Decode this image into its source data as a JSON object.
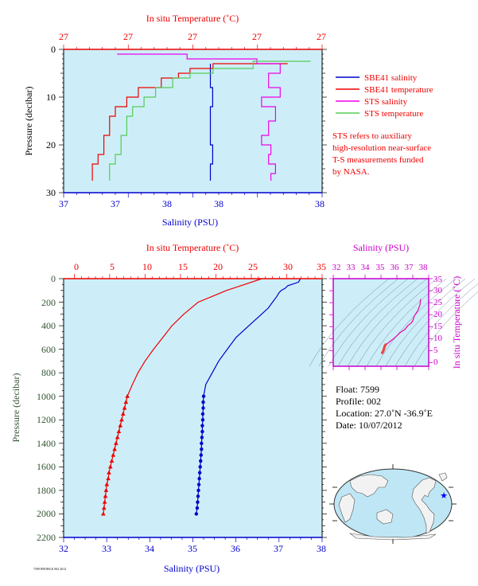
{
  "top_panel": {
    "top_axis_title": "In situ Temperature (˚C)",
    "top_tick_labels": [
      "27",
      "27",
      "27",
      "27",
      "27"
    ],
    "bottom_axis_title": "Salinity (PSU)",
    "bottom_tick_labels": [
      "37",
      "37",
      "38",
      "38",
      "38"
    ],
    "y_axis_title": "Pressure (decibar)",
    "y_tick_labels": [
      "0",
      "10",
      "20",
      "30"
    ],
    "legend": [
      {
        "label": "SBE41 salinity",
        "color": "#0000cc"
      },
      {
        "label": "SBE41 temperature",
        "color": "#ee0000"
      },
      {
        "label": "STS salinity",
        "color": "#ee00ee"
      },
      {
        "label": "STS temperature",
        "color": "#55cc55"
      }
    ],
    "note_lines": [
      "STS refers to auxiliary",
      "high-resolution near-surface",
      "T-S measurements funded",
      "by NASA."
    ]
  },
  "main_panel": {
    "top_axis_title": "In situ Temperature (˚C)",
    "top_tick_labels": [
      "0",
      "5",
      "10",
      "15",
      "20",
      "25",
      "30",
      "35"
    ],
    "bottom_axis_title": "Salinity (PSU)",
    "bottom_tick_labels": [
      "32",
      "33",
      "34",
      "35",
      "36",
      "37",
      "38"
    ],
    "y_axis_title": "Pressure (decibar)",
    "y_tick_labels": [
      "0",
      "200",
      "400",
      "600",
      "800",
      "1000",
      "1200",
      "1400",
      "1600",
      "1800",
      "2000",
      "2200"
    ]
  },
  "ts_panel": {
    "top_axis_title": "Salinity (PSU)",
    "top_tick_labels": [
      "32",
      "33",
      "34",
      "35",
      "36",
      "37",
      "38"
    ],
    "right_axis_title": "In situ Temperature (˚C)",
    "right_tick_labels": [
      "0",
      "5",
      "10",
      "15",
      "20",
      "25",
      "30",
      "35"
    ]
  },
  "info": {
    "float": "Float:  7599",
    "profile": "Profile:  002",
    "location": "Location:  27.0˚N  -36.9˚E",
    "date": "Date:  10/07/2012"
  },
  "footer_note": "7599 PROFILE 002 2012",
  "colors": {
    "panel_bg": "#cdeef8",
    "salinity": "#0000cc",
    "temperature": "#ee0000",
    "sts_salinity": "#ee00ee",
    "sts_temperature": "#55cc55",
    "axis_top": "#ee0000",
    "axis_bottom": "#0000cc",
    "axis_left": "#335533",
    "axis_ts": "#cc00cc",
    "land": "#f0f0f0",
    "ocean": "#bfe6f5",
    "float_marker": "#0000ff"
  },
  "chart_data": [
    {
      "type": "line",
      "title": "",
      "xlabel": "Salinity (PSU)",
      "x2label": "In situ Temperature (˚C)",
      "ylabel": "Pressure (decibar)",
      "ylim": [
        30,
        0
      ],
      "xlim_salinity": [
        36.97,
        38.08
      ],
      "xlim_temperature": [
        26.6,
        27.05
      ],
      "series": [
        {
          "name": "SBE41 salinity",
          "axis": "salinity",
          "pressure": [
            3,
            5,
            8,
            12,
            16,
            20,
            24,
            27.5
          ],
          "values": [
            37.6,
            37.6,
            37.6,
            37.61,
            37.6,
            37.6,
            37.61,
            37.6
          ]
        },
        {
          "name": "SBE41 temperature",
          "axis": "temperature",
          "pressure": [
            3,
            4,
            5,
            6,
            8,
            10,
            12,
            14,
            16,
            18,
            20,
            22,
            24,
            26,
            27.5
          ],
          "values": [
            26.99,
            26.86,
            26.82,
            26.8,
            26.77,
            26.73,
            26.71,
            26.69,
            26.68,
            26.68,
            26.67,
            26.67,
            26.66,
            26.65,
            26.65
          ]
        },
        {
          "name": "STS salinity",
          "axis": "salinity",
          "pressure": [
            1,
            2,
            3,
            5,
            8,
            10,
            12,
            15,
            18,
            20,
            22,
            24,
            26,
            27.5
          ],
          "values": [
            37.2,
            37.5,
            37.8,
            37.9,
            37.85,
            37.9,
            37.82,
            37.88,
            37.85,
            37.82,
            37.86,
            37.85,
            37.88,
            37.86
          ]
        },
        {
          "name": "STS temperature",
          "axis": "temperature",
          "pressure": [
            2.5,
            4,
            5,
            6,
            8,
            10,
            12,
            14,
            16,
            18,
            20,
            22,
            24,
            26,
            27.5
          ],
          "values": [
            27.03,
            26.93,
            26.86,
            26.82,
            26.79,
            26.76,
            26.74,
            26.72,
            26.71,
            26.71,
            26.7,
            26.7,
            26.69,
            26.68,
            26.68
          ]
        }
      ]
    },
    {
      "type": "line",
      "title": "",
      "xlabel": "Salinity (PSU)",
      "x2label": "In situ Temperature (˚C)",
      "ylabel": "Pressure (decibar)",
      "ylim": [
        2200,
        0
      ],
      "xlim_salinity": [
        32,
        38
      ],
      "xlim_temperature": [
        -1.5,
        35
      ],
      "series": [
        {
          "name": "Salinity",
          "axis": "salinity",
          "marker": "circle",
          "pressure": [
            0,
            30,
            60,
            80,
            100,
            120,
            150,
            200,
            250,
            300,
            400,
            500,
            600,
            700,
            800,
            900,
            1000,
            1050,
            1100,
            1150,
            1200,
            1250,
            1300,
            1350,
            1400,
            1450,
            1500,
            1550,
            1600,
            1650,
            1700,
            1750,
            1800,
            1850,
            1900,
            1950,
            2000
          ],
          "values": [
            37.5,
            37.45,
            37.2,
            37.15,
            37.05,
            37.0,
            36.95,
            36.85,
            36.75,
            36.6,
            36.3,
            36.0,
            35.8,
            35.6,
            35.45,
            35.3,
            35.25,
            35.24,
            35.24,
            35.23,
            35.23,
            35.22,
            35.22,
            35.21,
            35.2,
            35.2,
            35.19,
            35.18,
            35.17,
            35.16,
            35.15,
            35.14,
            35.13,
            35.12,
            35.11,
            35.1,
            35.08
          ]
        },
        {
          "name": "In situ Temperature",
          "axis": "temperature",
          "marker": "triangle",
          "pressure": [
            0,
            50,
            100,
            150,
            200,
            250,
            300,
            400,
            500,
            600,
            700,
            800,
            900,
            1000,
            1050,
            1100,
            1150,
            1200,
            1250,
            1300,
            1350,
            1400,
            1450,
            1500,
            1550,
            1600,
            1650,
            1700,
            1750,
            1800,
            1850,
            1900,
            1950,
            2000
          ],
          "values": [
            26.5,
            24.0,
            21.5,
            19.5,
            17.5,
            16.5,
            15.5,
            13.8,
            12.5,
            11.2,
            10.0,
            9.0,
            8.2,
            7.5,
            7.3,
            7.1,
            6.9,
            6.7,
            6.5,
            6.3,
            6.1,
            5.9,
            5.7,
            5.5,
            5.3,
            5.1,
            4.9,
            4.8,
            4.6,
            4.5,
            4.4,
            4.3,
            4.2,
            4.1
          ]
        }
      ]
    },
    {
      "type": "scatter",
      "title": "",
      "xlabel": "Salinity (PSU)",
      "ylabel": "In situ Temperature (˚C)",
      "xlim": [
        32,
        38
      ],
      "ylim": [
        -1.5,
        35
      ],
      "series": [
        {
          "name": "T-S profile",
          "x": [
            37.5,
            37.45,
            37.3,
            37.1,
            37.0,
            36.9,
            36.7,
            36.5,
            36.2,
            36.0,
            35.8,
            35.6,
            35.45,
            35.3,
            35.25,
            35.22,
            35.2,
            35.18,
            35.15,
            35.12,
            35.08
          ],
          "y": [
            26.5,
            24.0,
            21.5,
            19.5,
            17.5,
            16.5,
            15.5,
            13.8,
            12.5,
            11.2,
            10.0,
            9.0,
            8.2,
            7.5,
            7.1,
            6.5,
            6.0,
            5.5,
            5.0,
            4.5,
            4.1
          ]
        }
      ]
    }
  ]
}
